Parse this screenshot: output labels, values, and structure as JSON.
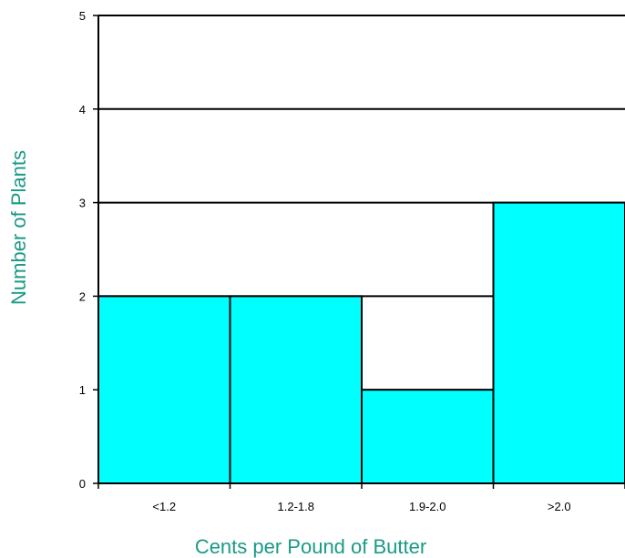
{
  "chart_data": {
    "type": "bar",
    "title": "",
    "xlabel": "Cents per Pound of Butter",
    "ylabel": "Number of Plants",
    "categories": [
      "<1.2",
      "1.2-1.8",
      "1.9-2.0",
      ">2.0"
    ],
    "values": [
      2,
      2,
      1,
      3
    ],
    "ylim": [
      0,
      5
    ],
    "yticks": [
      "0",
      "1",
      "2",
      "3",
      "4",
      "5"
    ],
    "grid": true,
    "legend": "none",
    "colors": {
      "bar_fill": "#00ffff",
      "bar_stroke": "#000000",
      "axis_title": "#1a9a86",
      "grid": "#000000"
    }
  }
}
